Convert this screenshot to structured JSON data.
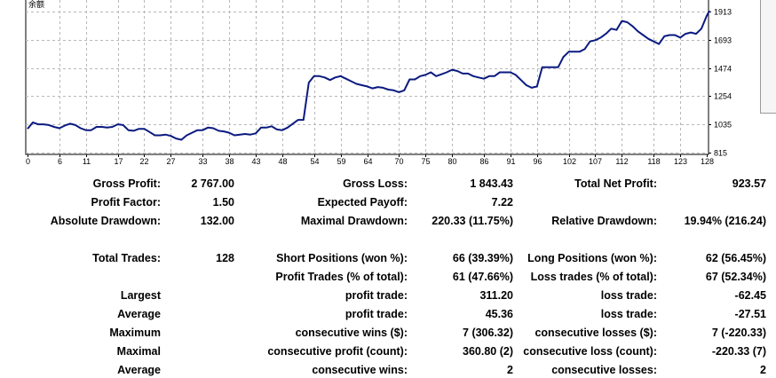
{
  "chart_data": {
    "type": "line",
    "series_label": "余额",
    "x_ticks": [
      0,
      6,
      11,
      17,
      22,
      27,
      33,
      38,
      43,
      48,
      54,
      59,
      64,
      70,
      75,
      80,
      86,
      91,
      96,
      102,
      107,
      112,
      118,
      123,
      128
    ],
    "y_ticks": [
      815,
      1035,
      1254,
      1474,
      1693,
      1913
    ],
    "xlim": [
      0,
      128
    ],
    "ylim": [
      815,
      1913
    ],
    "grid": true,
    "line_color": "#0b1a80",
    "points": [
      [
        0,
        1000
      ],
      [
        1,
        1050
      ],
      [
        2,
        1035
      ],
      [
        3,
        1035
      ],
      [
        4,
        1030
      ],
      [
        5,
        1015
      ],
      [
        6,
        1005
      ],
      [
        7,
        1025
      ],
      [
        8,
        1040
      ],
      [
        9,
        1030
      ],
      [
        10,
        1005
      ],
      [
        11,
        990
      ],
      [
        12,
        990
      ],
      [
        13,
        1015
      ],
      [
        14,
        1015
      ],
      [
        15,
        1010
      ],
      [
        16,
        1015
      ],
      [
        17,
        1035
      ],
      [
        18,
        1030
      ],
      [
        19,
        990
      ],
      [
        20,
        985
      ],
      [
        21,
        1000
      ],
      [
        22,
        1000
      ],
      [
        23,
        975
      ],
      [
        24,
        950
      ],
      [
        25,
        950
      ],
      [
        26,
        955
      ],
      [
        27,
        945
      ],
      [
        28,
        925
      ],
      [
        29,
        915
      ],
      [
        30,
        950
      ],
      [
        31,
        970
      ],
      [
        32,
        990
      ],
      [
        33,
        990
      ],
      [
        34,
        1010
      ],
      [
        35,
        1005
      ],
      [
        36,
        985
      ],
      [
        37,
        980
      ],
      [
        38,
        970
      ],
      [
        39,
        950
      ],
      [
        40,
        955
      ],
      [
        41,
        960
      ],
      [
        42,
        955
      ],
      [
        43,
        965
      ],
      [
        44,
        1010
      ],
      [
        45,
        1010
      ],
      [
        46,
        1020
      ],
      [
        47,
        995
      ],
      [
        48,
        990
      ],
      [
        49,
        1010
      ],
      [
        50,
        1040
      ],
      [
        51,
        1070
      ],
      [
        52,
        1070
      ],
      [
        53,
        1360
      ],
      [
        54,
        1410
      ],
      [
        55,
        1410
      ],
      [
        56,
        1400
      ],
      [
        57,
        1380
      ],
      [
        58,
        1400
      ],
      [
        59,
        1410
      ],
      [
        60,
        1390
      ],
      [
        61,
        1370
      ],
      [
        62,
        1350
      ],
      [
        63,
        1340
      ],
      [
        64,
        1330
      ],
      [
        65,
        1315
      ],
      [
        66,
        1325
      ],
      [
        67,
        1320
      ],
      [
        68,
        1305
      ],
      [
        69,
        1300
      ],
      [
        70,
        1285
      ],
      [
        71,
        1300
      ],
      [
        72,
        1385
      ],
      [
        73,
        1385
      ],
      [
        74,
        1410
      ],
      [
        75,
        1420
      ],
      [
        76,
        1440
      ],
      [
        77,
        1410
      ],
      [
        78,
        1425
      ],
      [
        79,
        1440
      ],
      [
        80,
        1460
      ],
      [
        81,
        1450
      ],
      [
        82,
        1430
      ],
      [
        83,
        1430
      ],
      [
        84,
        1410
      ],
      [
        85,
        1400
      ],
      [
        86,
        1390
      ],
      [
        87,
        1410
      ],
      [
        88,
        1410
      ],
      [
        89,
        1440
      ],
      [
        90,
        1440
      ],
      [
        91,
        1440
      ],
      [
        92,
        1420
      ],
      [
        93,
        1380
      ],
      [
        94,
        1340
      ],
      [
        95,
        1320
      ],
      [
        96,
        1330
      ],
      [
        97,
        1480
      ],
      [
        98,
        1480
      ],
      [
        99,
        1480
      ],
      [
        100,
        1480
      ],
      [
        101,
        1560
      ],
      [
        102,
        1600
      ],
      [
        103,
        1600
      ],
      [
        104,
        1600
      ],
      [
        105,
        1620
      ],
      [
        106,
        1680
      ],
      [
        107,
        1690
      ],
      [
        108,
        1710
      ],
      [
        109,
        1740
      ],
      [
        110,
        1780
      ],
      [
        111,
        1770
      ],
      [
        112,
        1840
      ],
      [
        113,
        1830
      ],
      [
        114,
        1800
      ],
      [
        115,
        1760
      ],
      [
        116,
        1730
      ],
      [
        117,
        1700
      ],
      [
        118,
        1680
      ],
      [
        119,
        1660
      ],
      [
        120,
        1720
      ],
      [
        121,
        1730
      ],
      [
        122,
        1730
      ],
      [
        123,
        1710
      ],
      [
        124,
        1740
      ],
      [
        125,
        1750
      ],
      [
        126,
        1740
      ],
      [
        127,
        1780
      ],
      [
        128,
        1880
      ],
      [
        128.5,
        1920
      ]
    ]
  },
  "stats": {
    "gross_profit_label": "Gross Profit:",
    "gross_profit_value": "2 767.00",
    "gross_loss_label": "Gross Loss:",
    "gross_loss_value": "1 843.43",
    "total_net_profit_label": "Total Net Profit:",
    "total_net_profit_value": "923.57",
    "profit_factor_label": "Profit Factor:",
    "profit_factor_value": "1.50",
    "expected_payoff_label": "Expected Payoff:",
    "expected_payoff_value": "7.22",
    "absolute_drawdown_label": "Absolute Drawdown:",
    "absolute_drawdown_value": "132.00",
    "maximal_drawdown_label": "Maximal Drawdown:",
    "maximal_drawdown_value": "220.33 (11.75%)",
    "relative_drawdown_label": "Relative Drawdown:",
    "relative_drawdown_value": "19.94% (216.24)",
    "total_trades_label": "Total Trades:",
    "total_trades_value": "128",
    "short_positions_label": "Short Positions (won %):",
    "short_positions_value": "66 (39.39%)",
    "long_positions_label": "Long Positions (won %):",
    "long_positions_value": "62 (56.45%)",
    "profit_trades_label": "Profit Trades (% of total):",
    "profit_trades_value": "61 (47.66%)",
    "loss_trades_label": "Loss trades (% of total):",
    "loss_trades_value": "67 (52.34%)",
    "largest_label": "Largest",
    "largest_profit_label": "profit trade:",
    "largest_profit_value": "311.20",
    "largest_loss_label": "loss trade:",
    "largest_loss_value": "-62.45",
    "average_label": "Average",
    "average_profit_label": "profit trade:",
    "average_profit_value": "45.36",
    "average_loss_label": "loss trade:",
    "average_loss_value": "-27.51",
    "maximum_label": "Maximum",
    "max_cons_wins_label": "consecutive wins ($):",
    "max_cons_wins_value": "7 (306.32)",
    "max_cons_losses_label": "consecutive losses ($):",
    "max_cons_losses_value": "7 (-220.33)",
    "maximal_label": "Maximal",
    "maximal_cons_profit_label": "consecutive profit (count):",
    "maximal_cons_profit_value": "360.80 (2)",
    "maximal_cons_loss_label": "consecutive loss (count):",
    "maximal_cons_loss_value": "-220.33 (7)",
    "average2_label": "Average",
    "avg_cons_wins_label": "consecutive wins:",
    "avg_cons_wins_value": "2",
    "avg_cons_losses_label": "consecutive losses:",
    "avg_cons_losses_value": "2"
  }
}
